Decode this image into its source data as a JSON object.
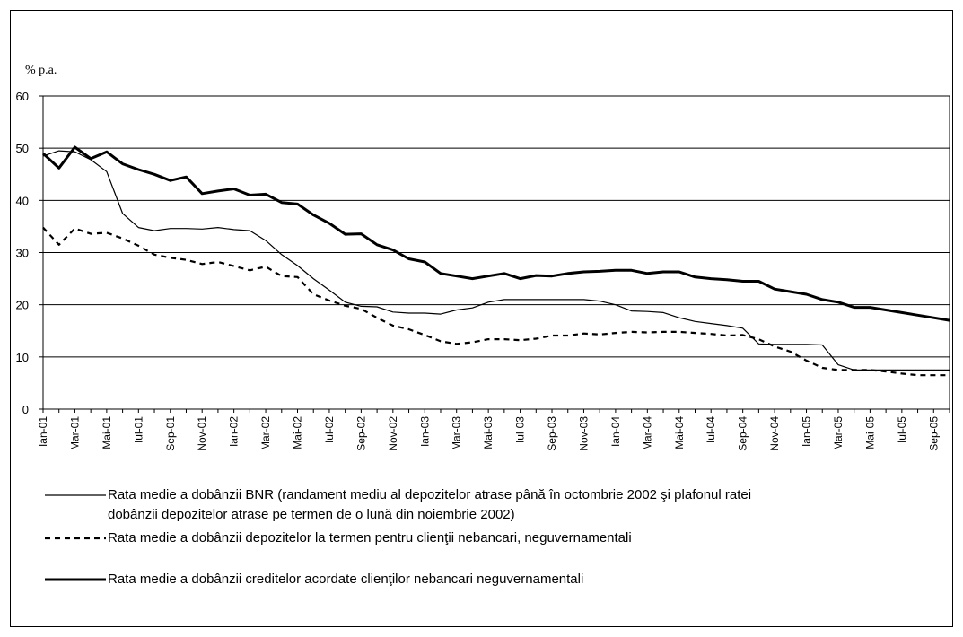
{
  "chart_data": {
    "type": "line",
    "ylabel": "% p.a.",
    "ylim": [
      0,
      60
    ],
    "yticks": [
      0,
      10,
      20,
      30,
      40,
      50,
      60
    ],
    "grid": true,
    "x_tick_labels": [
      "Ian-01",
      "Mar-01",
      "Mai-01",
      "Iul-01",
      "Sep-01",
      "Nov-01",
      "Ian-02",
      "Mar-02",
      "Mai-02",
      "Iul-02",
      "Sep-02",
      "Nov-02",
      "Ian-03",
      "Mar-03",
      "Mai-03",
      "Iul-03",
      "Sep-03",
      "Nov-03",
      "Ian-04",
      "Mar-04",
      "Mai-04",
      "Iul-04",
      "Sep-04",
      "Nov-04",
      "Ian-05",
      "Mar-05",
      "Mai-05",
      "Iul-05",
      "Sep-05"
    ],
    "x_tick_months": [
      0,
      2,
      4,
      6,
      8,
      10,
      12,
      14,
      16,
      18,
      20,
      22,
      24,
      26,
      28,
      30,
      32,
      34,
      36,
      38,
      40,
      42,
      44,
      46,
      48,
      50,
      52,
      54,
      56
    ],
    "x_months": [
      0,
      1,
      2,
      3,
      4,
      5,
      6,
      7,
      8,
      9,
      10,
      11,
      12,
      13,
      14,
      15,
      16,
      17,
      18,
      19,
      20,
      21,
      22,
      23,
      24,
      25,
      26,
      27,
      28,
      29,
      30,
      31,
      32,
      33,
      34,
      35,
      36,
      37,
      38,
      39,
      40,
      41,
      42,
      43,
      44,
      45,
      46,
      47,
      48,
      49,
      50,
      51,
      52,
      53,
      54,
      55,
      56,
      57
    ],
    "series": [
      {
        "name": "Rata medie a dobânzii BNR (randament mediu al depozitelor atrase până în octombrie 2002 şi plafonul ratei dobânzii depozitelor atrase pe termen de o lună din noiembrie 2002)",
        "style": "thin",
        "values": [
          48.5,
          49.5,
          49.3,
          47.8,
          45.5,
          37.5,
          34.8,
          34.2,
          34.6,
          34.6,
          34.5,
          34.8,
          34.4,
          34.2,
          32.3,
          29.6,
          27.5,
          25.0,
          22.8,
          20.5,
          19.7,
          19.6,
          18.6,
          18.4,
          18.4,
          18.2,
          19.0,
          19.4,
          20.5,
          21.0,
          21.0,
          21.0,
          21.0,
          21.0,
          21.0,
          20.7,
          20.0,
          18.8,
          18.7,
          18.5,
          17.5,
          16.8,
          16.4,
          16.0,
          15.5,
          12.5,
          12.4,
          12.4,
          12.4,
          12.3,
          8.5,
          7.5,
          7.5,
          7.5,
          7.5,
          7.5,
          7.5,
          7.5
        ]
      },
      {
        "name": "Rata medie a dobânzii depozitelor la termen pentru clienţii nebancari, neguvernamentali",
        "style": "dashed",
        "values": [
          34.8,
          31.5,
          34.6,
          33.6,
          33.8,
          32.7,
          31.3,
          29.6,
          29.0,
          28.6,
          27.8,
          28.2,
          27.4,
          26.6,
          27.3,
          25.5,
          25.3,
          22.0,
          20.8,
          19.8,
          19.2,
          17.5,
          16.0,
          15.3,
          14.2,
          13.0,
          12.5,
          12.8,
          13.4,
          13.4,
          13.2,
          13.5,
          14.1,
          14.1,
          14.5,
          14.3,
          14.6,
          14.8,
          14.7,
          14.8,
          14.8,
          14.6,
          14.4,
          14.1,
          14.2,
          13.4,
          12.0,
          11.0,
          9.3,
          7.9,
          7.5,
          7.5,
          7.5,
          7.2,
          6.8,
          6.5,
          6.5,
          6.5
        ]
      },
      {
        "name": "Rata medie a dobânzii creditelor acordate clienţilor nebancari neguvernamentali",
        "style": "thick",
        "values": [
          49.0,
          46.2,
          50.2,
          48.0,
          49.3,
          47.0,
          45.9,
          45.0,
          43.8,
          44.5,
          41.3,
          41.8,
          42.2,
          41.0,
          41.2,
          39.6,
          39.3,
          37.2,
          35.6,
          33.5,
          33.6,
          31.5,
          30.5,
          28.8,
          28.2,
          26.0,
          25.5,
          25.0,
          25.5,
          26.0,
          25.0,
          25.6,
          25.5,
          26.0,
          26.3,
          26.4,
          26.6,
          26.6,
          26.0,
          26.3,
          26.3,
          25.3,
          25.0,
          24.8,
          24.5,
          24.5,
          23.0,
          22.5,
          22.0,
          21.0,
          20.5,
          19.5,
          19.5,
          19.0,
          18.5,
          18.0,
          17.5,
          17.0
        ]
      }
    ]
  },
  "legend": {
    "item1_line1": "Rata medie a dobânzii BNR (randament mediu al depozitelor atrase până în octombrie 2002 şi plafonul ratei",
    "item1_line2": "dobânzii depozitelor atrase pe termen de o lună din noiembrie 2002)",
    "item2": "Rata medie a dobânzii depozitelor la termen pentru clienţii nebancari, neguvernamentali",
    "item3": "Rata medie a dobânzii creditelor acordate clienţilor nebancari neguvernamentali"
  }
}
